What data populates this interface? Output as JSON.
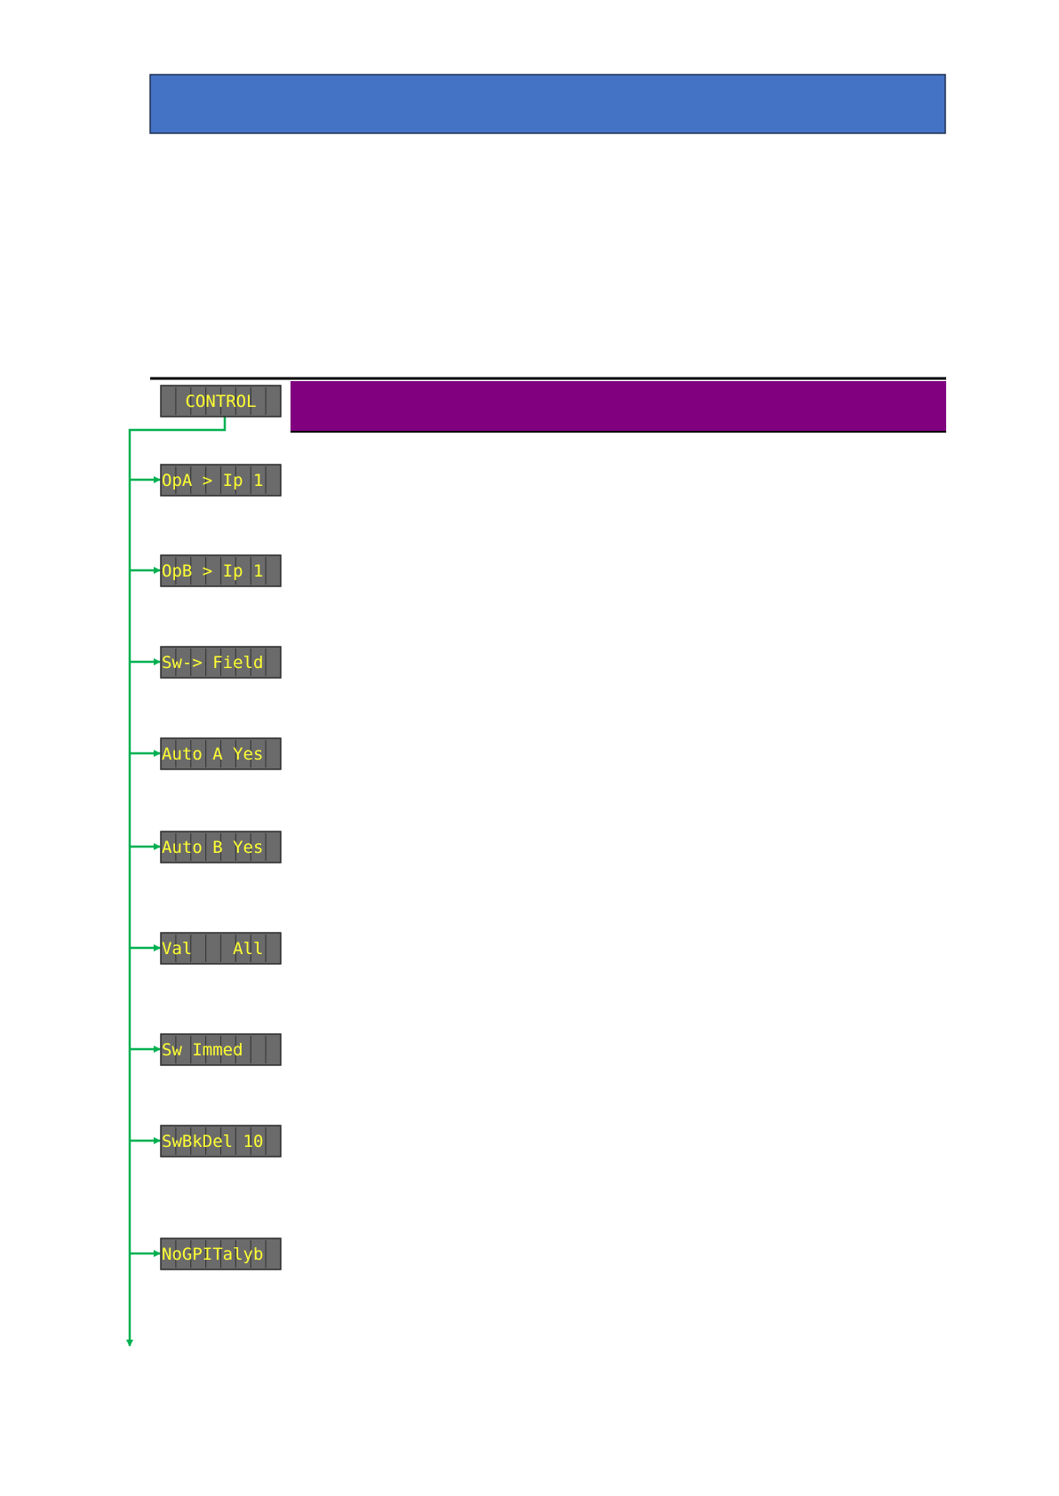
{
  "menu": {
    "title": "CONTROL",
    "items": [
      "OpA > Ip 1",
      "OpB > Ip 1",
      "Sw-> Field",
      "Auto A Yes",
      "Auto B Yes",
      "Val    All",
      "Sw Immed",
      "SwBkDel 10",
      "NoGPITalyb"
    ]
  }
}
